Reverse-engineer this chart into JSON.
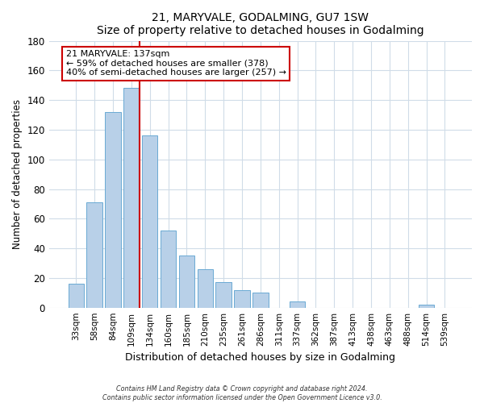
{
  "title": "21, MARYVALE, GODALMING, GU7 1SW",
  "subtitle": "Size of property relative to detached houses in Godalming",
  "xlabel": "Distribution of detached houses by size in Godalming",
  "ylabel": "Number of detached properties",
  "bar_labels": [
    "33sqm",
    "58sqm",
    "84sqm",
    "109sqm",
    "134sqm",
    "160sqm",
    "185sqm",
    "210sqm",
    "235sqm",
    "261sqm",
    "286sqm",
    "311sqm",
    "337sqm",
    "362sqm",
    "387sqm",
    "413sqm",
    "438sqm",
    "463sqm",
    "488sqm",
    "514sqm",
    "539sqm"
  ],
  "bar_values": [
    16,
    71,
    132,
    148,
    116,
    52,
    35,
    26,
    17,
    12,
    10,
    0,
    4,
    0,
    0,
    0,
    0,
    0,
    0,
    2,
    0
  ],
  "bar_color": "#b8d0e8",
  "bar_edge_color": "#6aaad4",
  "ylim": [
    0,
    180
  ],
  "yticks": [
    0,
    20,
    40,
    60,
    80,
    100,
    120,
    140,
    160,
    180
  ],
  "property_line_color": "#cc0000",
  "annotation_title": "21 MARYVALE: 137sqm",
  "annotation_line1": "← 59% of detached houses are smaller (378)",
  "annotation_line2": "40% of semi-detached houses are larger (257) →",
  "annotation_box_color": "#ffffff",
  "annotation_box_edge": "#cc0000",
  "footer_line1": "Contains HM Land Registry data © Crown copyright and database right 2024.",
  "footer_line2": "Contains public sector information licensed under the Open Government Licence v3.0.",
  "background_color": "#ffffff",
  "plot_bg_color": "#ffffff",
  "grid_color": "#d0dce8"
}
